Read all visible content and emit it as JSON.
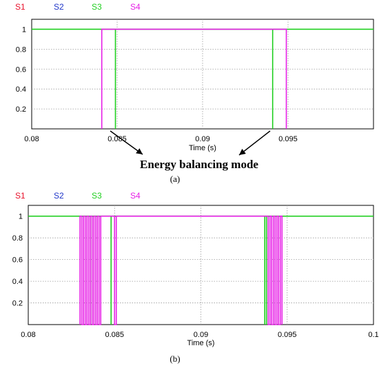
{
  "chart_data": [
    {
      "type": "line",
      "panel_label": "(a)",
      "legend": [
        {
          "name": "S1",
          "color": "#e8102a"
        },
        {
          "name": "S2",
          "color": "#1f35c8"
        },
        {
          "name": "S3",
          "color": "#1ecf1e"
        },
        {
          "name": "S4",
          "color": "#e61ee6"
        }
      ],
      "xlabel": "Time (s)",
      "x_ticks": [
        "0.08",
        "0.085",
        "0.09",
        "0.095"
      ],
      "y_ticks": [
        "0.2",
        "0.4",
        "0.6",
        "0.8",
        "1"
      ],
      "xlim": [
        0.08,
        0.1
      ],
      "ylim": [
        0,
        1.1
      ],
      "grid": true,
      "series": [
        {
          "name": "S3",
          "color": "#1ecf1e",
          "x": [
            0.08,
            0.0849,
            0.0849,
            0.0849,
            0.0849,
            0.0941,
            0.0941,
            0.0941,
            0.0941,
            0.1
          ],
          "y": [
            1,
            1,
            0,
            0,
            1,
            1,
            0,
            0,
            1,
            1
          ]
        },
        {
          "name": "S4",
          "color": "#e61ee6",
          "x": [
            0.0841,
            0.0841,
            0.0949,
            0.0949
          ],
          "y": [
            0,
            1,
            1,
            0
          ]
        }
      ],
      "annotation": "Energy balancing mode"
    },
    {
      "type": "line",
      "panel_label": "(b)",
      "legend": [
        {
          "name": "S1",
          "color": "#e8102a"
        },
        {
          "name": "S2",
          "color": "#1f35c8"
        },
        {
          "name": "S3",
          "color": "#1ecf1e"
        },
        {
          "name": "S4",
          "color": "#e61ee6"
        }
      ],
      "xlabel": "Time (s)",
      "x_ticks": [
        "0.08",
        "0.085",
        "0.09",
        "0.095",
        "0.1"
      ],
      "y_ticks": [
        "0.2",
        "0.4",
        "0.6",
        "0.8",
        "1"
      ],
      "xlim": [
        0.08,
        0.1
      ],
      "ylim": [
        0,
        1.1
      ],
      "grid": true,
      "series": [
        {
          "name": "S3",
          "color": "#1ecf1e",
          "x": [
            0.08,
            0.0837,
            0.0837,
            0.0837,
            0.0837,
            0.0848,
            0.0848,
            0.0848,
            0.0848,
            0.0937,
            0.0937,
            0.0937,
            0.0937,
            0.0938,
            0.0938,
            0.0938,
            0.0938,
            0.1
          ],
          "y": [
            1,
            1,
            0,
            0,
            1,
            1,
            0,
            0,
            1,
            1,
            0,
            0,
            1,
            1,
            0,
            0,
            1,
            1
          ]
        },
        {
          "name": "S4",
          "color": "#e61ee6",
          "x": [
            0.083,
            0.083,
            0.0831,
            0.0831,
            0.0832,
            0.0832,
            0.0833,
            0.0833,
            0.0834,
            0.0834,
            0.0835,
            0.0835,
            0.0836,
            0.0836,
            0.0837,
            0.0837,
            0.0838,
            0.0838,
            0.0839,
            0.0839,
            0.084,
            0.084,
            0.0841,
            0.0841,
            0.0842,
            0.0842,
            0.085,
            0.085,
            0.0851,
            0.0851,
            0.0939,
            0.0939,
            0.094,
            0.094,
            0.0941,
            0.0941,
            0.0942,
            0.0942,
            0.0943,
            0.0943,
            0.0944,
            0.0944,
            0.0945,
            0.0945,
            0.0946,
            0.0946,
            0.0947,
            0.0947
          ],
          "y": [
            0,
            1,
            1,
            0,
            0,
            1,
            1,
            0,
            0,
            1,
            1,
            0,
            0,
            1,
            1,
            0,
            0,
            1,
            1,
            0,
            0,
            1,
            1,
            0,
            0,
            1,
            1,
            0,
            0,
            1,
            1,
            0,
            0,
            1,
            1,
            0,
            0,
            1,
            1,
            0,
            0,
            1,
            1,
            0,
            0,
            1,
            1,
            0
          ]
        }
      ]
    }
  ]
}
